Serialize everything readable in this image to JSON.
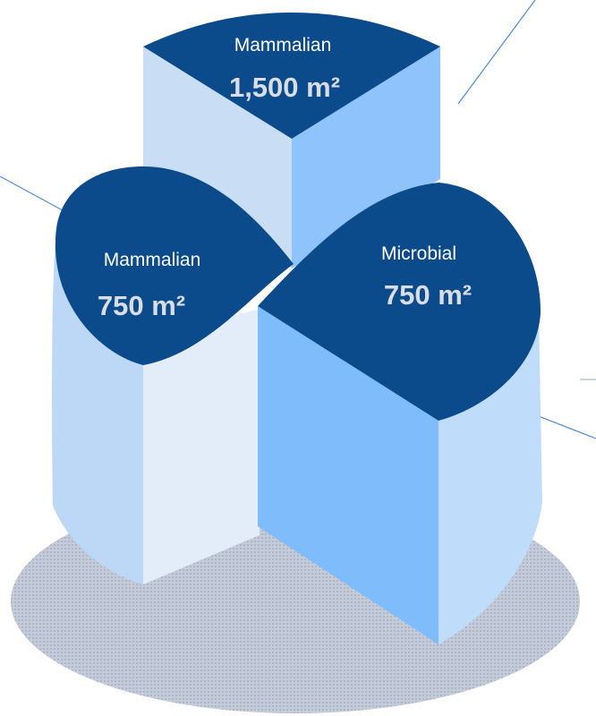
{
  "segments": [
    {
      "name": "Mammalian",
      "area": "1,500 m²",
      "unit_sup": "2"
    },
    {
      "name": "Mammalian",
      "area": "750 m²"
    },
    {
      "name": "Microbial",
      "area": "750 m²"
    }
  ],
  "colors": {
    "top_dark": "#0b4a8b",
    "face_light": "#c9ddf4",
    "face_mid": "#8ec3fb",
    "face_bright": "#7fbcfb",
    "face_pale": "#e3edf9",
    "side_pale": "#bdd8f7",
    "shadow": "#a7b2c4",
    "callout_line": "#4f8bd0"
  }
}
